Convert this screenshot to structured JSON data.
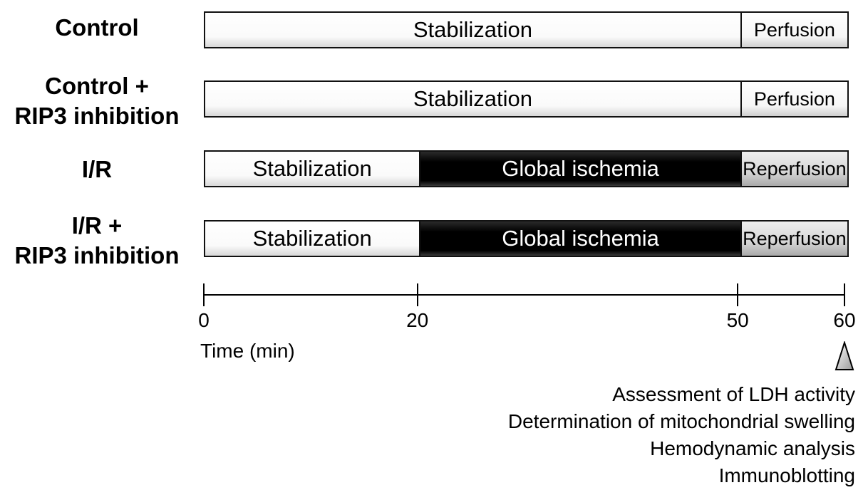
{
  "groups": [
    {
      "label_lines": [
        "Control"
      ],
      "segments": [
        {
          "label": "Stabilization",
          "kind": "stab",
          "start": 0,
          "end": 50
        },
        {
          "label": "Perfusion",
          "kind": "perf",
          "start": 50,
          "end": 60
        }
      ]
    },
    {
      "label_lines": [
        "Control +",
        "RIP3 inhibition"
      ],
      "segments": [
        {
          "label": "Stabilization",
          "kind": "stab",
          "start": 0,
          "end": 50
        },
        {
          "label": "Perfusion",
          "kind": "perf",
          "start": 50,
          "end": 60
        }
      ]
    },
    {
      "label_lines": [
        "I/R"
      ],
      "segments": [
        {
          "label": "Stabilization",
          "kind": "stab",
          "start": 0,
          "end": 20
        },
        {
          "label": "Global ischemia",
          "kind": "isch",
          "start": 20,
          "end": 50
        },
        {
          "label": "Reperfusion",
          "kind": "reperf",
          "start": 50,
          "end": 60
        }
      ]
    },
    {
      "label_lines": [
        "I/R +",
        "RIP3 inhibition"
      ],
      "segments": [
        {
          "label": "Stabilization",
          "kind": "stab",
          "start": 0,
          "end": 20
        },
        {
          "label": "Global ischemia",
          "kind": "isch",
          "start": 20,
          "end": 50
        },
        {
          "label": "Reperfusion",
          "kind": "reperf",
          "start": 50,
          "end": 60
        }
      ]
    }
  ],
  "timeline": {
    "ticks": [
      0,
      20,
      50,
      60
    ],
    "tick_labels": [
      "0",
      "20",
      "50",
      "60"
    ],
    "title": "Time (min)",
    "range": [
      0,
      60
    ]
  },
  "outcomes": [
    "Assessment of LDH activity",
    "Determination of mitochondrial swelling",
    "Hemodynamic analysis",
    "Immunoblotting"
  ],
  "colors": {
    "ischemia": "#000000",
    "reperfusion": "#cfcfcf",
    "stabilization": "#ffffff"
  }
}
